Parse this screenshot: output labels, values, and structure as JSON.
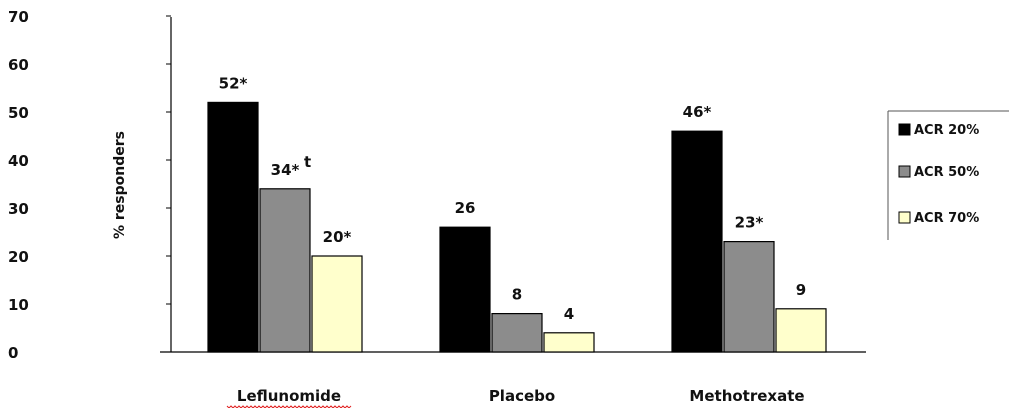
{
  "chart_data": {
    "type": "bar",
    "ylabel": "% responders",
    "xlabel": "",
    "ylim": [
      0,
      70
    ],
    "yticks": [
      "0",
      "10",
      "20",
      "30",
      "40",
      "50",
      "60",
      "70"
    ],
    "grid": false,
    "legend_position": "right",
    "categories": [
      "Leflunomide",
      "Placebo",
      "Methotrexate"
    ],
    "series": [
      {
        "name": "ACR 20%",
        "color": "#000000",
        "values": [
          52,
          26,
          46
        ],
        "labels": [
          "52*",
          "26",
          "46*"
        ]
      },
      {
        "name": "ACR 50%",
        "color": "#8c8c8c",
        "values": [
          34,
          8,
          23
        ],
        "labels": [
          "34*",
          "8",
          "23*"
        ]
      },
      {
        "name": "ACR 70%",
        "color": "#ffffcc",
        "values": [
          20,
          4,
          9
        ],
        "labels": [
          "20*",
          "4",
          "9"
        ]
      }
    ],
    "annotations": [
      {
        "category": "Leflunomide",
        "series": "ACR 50%",
        "superscript": "t"
      }
    ]
  }
}
